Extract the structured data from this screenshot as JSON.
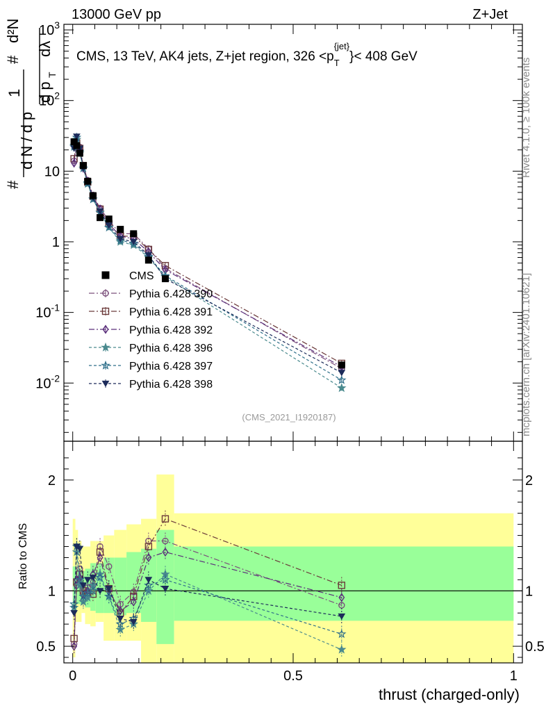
{
  "header": {
    "left": "13000 GeV pp",
    "right": "Z+Jet"
  },
  "side": {
    "rivet": "Rivet 4.1.0, ≥ 100k events",
    "mcplots": "mcplots.cern.ch [arXiv:2401.10621]"
  },
  "watermark": "(CMS_2021_I1920187)",
  "chart_data": {
    "type": "line",
    "title": "CMS, 13 TeV, AK4 jets, Z+jet region, 326 <p_T^{jet}> < 408 GeV",
    "xlabel": "thrust (charged-only)",
    "ylabel": "1/dN/dp_T · d²N/dp_T dλ",
    "ratio_ylabel": "Ratio to CMS",
    "xlim": [
      -0.02,
      1.02
    ],
    "ylim": [
      0.0015,
      1200
    ],
    "yscale": "log",
    "ratio_ylim": [
      0.35,
      2.35
    ],
    "x_ticks": [
      "0",
      "0.5",
      "1"
    ],
    "y_ticks": [
      "10^-2",
      "10^-1",
      "1",
      "10",
      "10^2",
      "10^3"
    ],
    "ratio_ticks": [
      "0.5",
      "1",
      "2"
    ],
    "x": [
      0.003,
      0.009,
      0.016,
      0.024,
      0.034,
      0.046,
      0.062,
      0.082,
      0.108,
      0.138,
      0.172,
      0.21,
      0.61
    ],
    "data": {
      "name": "CMS",
      "values": [
        26,
        23,
        18,
        12,
        7.2,
        4.5,
        2.2,
        2.1,
        1.5,
        1.3,
        0.55,
        0.3,
        0.018
      ]
    },
    "series": [
      {
        "name": "Pythia 6.428 390",
        "marker": "circle-open",
        "color": "#7b4f7b",
        "dash": "8 3 2 3",
        "values": [
          14,
          23,
          22,
          12,
          7.4,
          4.6,
          3.0,
          2.0,
          1.3,
          1.3,
          0.8,
          0.42,
          0.016
        ],
        "ratio": [
          0.52,
          1.05,
          1.2,
          0.97,
          1.03,
          1.05,
          1.4,
          1.22,
          0.88,
          0.99,
          1.45,
          1.45,
          0.87
        ]
      },
      {
        "name": "Pythia 6.428 391",
        "marker": "square-open",
        "color": "#6b3a3a",
        "dash": "8 3 2 3",
        "values": [
          15,
          25,
          21,
          12,
          7.0,
          4.4,
          2.9,
          1.8,
          1.2,
          1.2,
          0.78,
          0.46,
          0.019
        ],
        "ratio": [
          0.57,
          1.08,
          1.15,
          1.0,
          0.98,
          0.97,
          1.35,
          1.02,
          0.8,
          0.95,
          1.4,
          1.65,
          1.05
        ]
      },
      {
        "name": "Pythia 6.428 392",
        "marker": "diamond-open",
        "color": "#5a2e7a",
        "dash": "8 3 2 3",
        "values": [
          13,
          24,
          20,
          11,
          7.2,
          4.3,
          2.9,
          1.8,
          1.2,
          1.1,
          0.72,
          0.4,
          0.017
        ],
        "ratio": [
          0.5,
          1.1,
          1.12,
          0.92,
          1.0,
          1.15,
          1.3,
          1.0,
          0.82,
          0.9,
          1.3,
          1.35,
          0.94
        ]
      },
      {
        "name": "Pythia 6.428 396",
        "marker": "star-filled",
        "color": "#4a8a8e",
        "dash": "4 3",
        "values": [
          22,
          28,
          18,
          11,
          6.6,
          4.0,
          2.6,
          1.6,
          1.0,
          0.9,
          0.6,
          0.32,
          0.0085
        ],
        "ratio": [
          0.85,
          1.35,
          1.05,
          0.9,
          0.94,
          1.05,
          1.15,
          0.95,
          0.65,
          0.7,
          1.0,
          1.15,
          0.47
        ]
      },
      {
        "name": "Pythia 6.428 397",
        "marker": "star-open",
        "color": "#2f6f8a",
        "dash": "4 3",
        "values": [
          23,
          30,
          19,
          11,
          6.8,
          4.0,
          2.6,
          1.6,
          1.05,
          0.95,
          0.62,
          0.33,
          0.011
        ],
        "ratio": [
          0.88,
          1.4,
          1.1,
          0.95,
          0.98,
          1.0,
          1.12,
          0.95,
          0.7,
          0.75,
          1.05,
          1.1,
          0.61
        ]
      },
      {
        "name": "Pythia 6.428 398",
        "marker": "triangle-down-filled",
        "color": "#1c2b5a",
        "dash": "4 3",
        "values": [
          21,
          31,
          21,
          11,
          7.0,
          4.2,
          2.7,
          1.7,
          1.1,
          1.0,
          0.65,
          0.3,
          0.014
        ],
        "ratio": [
          0.8,
          1.4,
          1.38,
          1.05,
          1.1,
          1.12,
          1.0,
          1.02,
          0.75,
          0.72,
          1.1,
          1.02,
          0.77
        ]
      }
    ],
    "bands": {
      "x_edges": [
        0,
        0.006,
        0.012,
        0.02,
        0.028,
        0.04,
        0.052,
        0.07,
        0.094,
        0.122,
        0.155,
        0.19,
        0.23,
        1.0
      ],
      "inner_lo": [
        0.85,
        0.88,
        0.88,
        0.9,
        0.85,
        0.82,
        0.8,
        0.8,
        0.78,
        0.8,
        0.72,
        0.52,
        0.73
      ],
      "inner_hi": [
        1.22,
        1.2,
        1.2,
        1.18,
        1.2,
        1.25,
        1.25,
        1.3,
        1.3,
        1.35,
        1.38,
        1.55,
        1.4
      ],
      "outer_lo": [
        0.4,
        0.72,
        0.72,
        0.8,
        0.7,
        0.68,
        0.72,
        0.55,
        0.55,
        0.55,
        0.35,
        0.35,
        0.35
      ],
      "outer_hi": [
        1.65,
        1.55,
        1.45,
        1.4,
        1.4,
        1.45,
        1.45,
        1.5,
        1.55,
        1.6,
        1.65,
        2.05,
        1.7
      ]
    },
    "legend_position": "middle-left"
  }
}
